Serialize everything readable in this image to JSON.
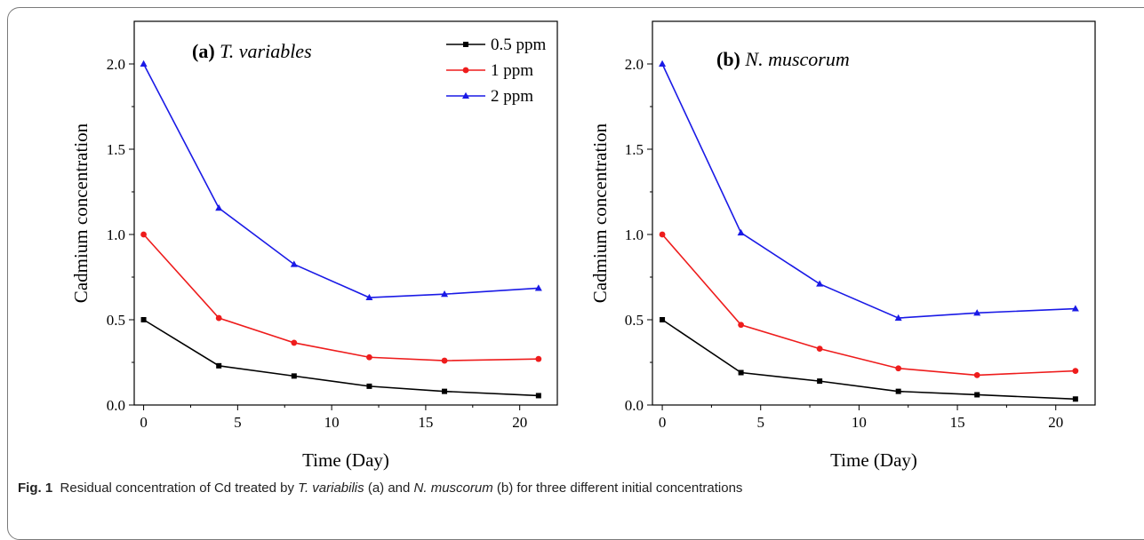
{
  "caption": {
    "label": "Fig. 1",
    "parts": [
      {
        "text": "Residual concentration of Cd treated by ",
        "italic": false
      },
      {
        "text": "T. variabilis",
        "italic": true
      },
      {
        "text": " (a) and ",
        "italic": false
      },
      {
        "text": "N. muscorum",
        "italic": true
      },
      {
        "text": " (b) for three different initial concentrations",
        "italic": false
      }
    ]
  },
  "chart_data": [
    {
      "type": "line",
      "panel_label": "(a)",
      "title": "T. variables",
      "xlabel": "Time (Day)",
      "ylabel": "Cadmium concentration",
      "xlim": [
        -0.5,
        22
      ],
      "ylim": [
        0,
        2.25
      ],
      "xticks": [
        0,
        5,
        10,
        15,
        20
      ],
      "yticks": [
        0.0,
        0.5,
        1.0,
        1.5,
        2.0
      ],
      "ytick_labels": [
        "0.0",
        "0.5",
        "1.0",
        "1.5",
        "2.0"
      ],
      "legend_position": "top-right",
      "x": [
        0,
        4,
        8,
        12,
        16,
        21
      ],
      "series": [
        {
          "name": "0.5 ppm",
          "color": "#000000",
          "marker": "square",
          "values": [
            0.5,
            0.23,
            0.17,
            0.11,
            0.08,
            0.055
          ]
        },
        {
          "name": "1 ppm",
          "color": "#ee1c1c",
          "marker": "circle",
          "values": [
            1.0,
            0.51,
            0.365,
            0.28,
            0.26,
            0.27
          ]
        },
        {
          "name": "2 ppm",
          "color": "#1a1ae6",
          "marker": "triangle",
          "values": [
            2.0,
            1.155,
            0.825,
            0.63,
            0.65,
            0.685
          ]
        }
      ]
    },
    {
      "type": "line",
      "panel_label": "(b)",
      "title": "N. muscorum",
      "xlabel": "Time (Day)",
      "ylabel": "Cadmium concentration",
      "xlim": [
        -0.5,
        22
      ],
      "ylim": [
        0,
        2.25
      ],
      "xticks": [
        0,
        5,
        10,
        15,
        20
      ],
      "yticks": [
        0.0,
        0.5,
        1.0,
        1.5,
        2.0
      ],
      "ytick_labels": [
        "0.0",
        "0.5",
        "1.0",
        "1.5",
        "2.0"
      ],
      "x": [
        0,
        4,
        8,
        12,
        16,
        21
      ],
      "series": [
        {
          "name": "0.5 ppm",
          "color": "#000000",
          "marker": "square",
          "values": [
            0.5,
            0.19,
            0.14,
            0.08,
            0.06,
            0.035
          ]
        },
        {
          "name": "1 ppm",
          "color": "#ee1c1c",
          "marker": "circle",
          "values": [
            1.0,
            0.47,
            0.33,
            0.215,
            0.175,
            0.2
          ]
        },
        {
          "name": "2 ppm",
          "color": "#1a1ae6",
          "marker": "triangle",
          "values": [
            2.0,
            1.01,
            0.71,
            0.51,
            0.54,
            0.565
          ]
        }
      ]
    }
  ]
}
